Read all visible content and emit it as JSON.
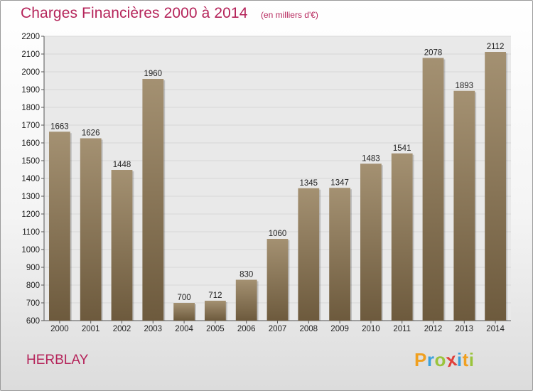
{
  "header": {
    "title": "Charges Financières 2000 à 2014",
    "subtitle": "(en milliers d'€)"
  },
  "footer": {
    "city": "HERBLAY",
    "logo_letters": [
      "P",
      "r",
      "o",
      "x",
      "i",
      "t",
      "i"
    ],
    "logo_colors": [
      "#f0a020",
      "#3aa1dc",
      "#9ac43c",
      "#e0403a",
      "#3aa1dc",
      "#f0a020",
      "#9ac43c"
    ]
  },
  "chart_data": {
    "type": "bar",
    "title": "Charges Financières 2000 à 2014",
    "subtitle": "(en milliers d'€)",
    "categories": [
      "2000",
      "2001",
      "2002",
      "2003",
      "2004",
      "2005",
      "2006",
      "2007",
      "2008",
      "2009",
      "2010",
      "2011",
      "2012",
      "2013",
      "2014"
    ],
    "values": [
      1663,
      1626,
      1448,
      1960,
      700,
      712,
      830,
      1060,
      1345,
      1347,
      1483,
      1541,
      2078,
      1893,
      2112
    ],
    "ylim": [
      600,
      2200
    ],
    "ytick_step": 100,
    "grid": true,
    "bar_color_top": "#a49172",
    "bar_color_bottom": "#6d5a3d",
    "grid_color": "#d8d8d8",
    "background_color": "#e9e9e9"
  }
}
